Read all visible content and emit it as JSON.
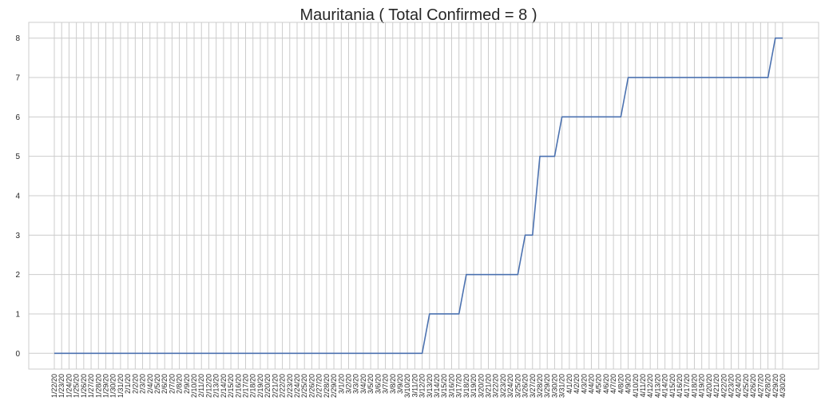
{
  "chart_data": {
    "type": "line",
    "title": "Mauritania ( Total Confirmed = 8 )",
    "xlabel": "",
    "ylabel": "",
    "ylim": [
      -0.4,
      8.4
    ],
    "yticks": [
      0,
      1,
      2,
      3,
      4,
      5,
      6,
      7,
      8
    ],
    "grid": true,
    "x": [
      "1/22/20",
      "1/23/20",
      "1/24/20",
      "1/25/20",
      "1/26/20",
      "1/27/20",
      "1/28/20",
      "1/29/20",
      "1/30/20",
      "1/31/20",
      "2/1/20",
      "2/2/20",
      "2/3/20",
      "2/4/20",
      "2/5/20",
      "2/6/20",
      "2/7/20",
      "2/8/20",
      "2/9/20",
      "2/10/20",
      "2/11/20",
      "2/12/20",
      "2/13/20",
      "2/14/20",
      "2/15/20",
      "2/16/20",
      "2/17/20",
      "2/18/20",
      "2/19/20",
      "2/20/20",
      "2/21/20",
      "2/22/20",
      "2/23/20",
      "2/24/20",
      "2/25/20",
      "2/26/20",
      "2/27/20",
      "2/28/20",
      "2/29/20",
      "3/1/20",
      "3/2/20",
      "3/3/20",
      "3/4/20",
      "3/5/20",
      "3/6/20",
      "3/7/20",
      "3/8/20",
      "3/9/20",
      "3/10/20",
      "3/11/20",
      "3/12/20",
      "3/13/20",
      "3/14/20",
      "3/15/20",
      "3/16/20",
      "3/17/20",
      "3/18/20",
      "3/19/20",
      "3/20/20",
      "3/21/20",
      "3/22/20",
      "3/23/20",
      "3/24/20",
      "3/25/20",
      "3/26/20",
      "3/27/20",
      "3/28/20",
      "3/29/20",
      "3/30/20",
      "3/31/20",
      "4/1/20",
      "4/2/20",
      "4/3/20",
      "4/4/20",
      "4/5/20",
      "4/6/20",
      "4/7/20",
      "4/8/20",
      "4/9/20",
      "4/10/20",
      "4/11/20",
      "4/12/20",
      "4/13/20",
      "4/14/20",
      "4/15/20",
      "4/16/20",
      "4/17/20",
      "4/18/20",
      "4/19/20",
      "4/20/20",
      "4/21/20",
      "4/22/20",
      "4/23/20",
      "4/24/20",
      "4/25/20",
      "4/26/20",
      "4/27/20",
      "4/28/20",
      "4/29/20",
      "4/30/20"
    ],
    "series": [
      {
        "name": "",
        "values": [
          0,
          0,
          0,
          0,
          0,
          0,
          0,
          0,
          0,
          0,
          0,
          0,
          0,
          0,
          0,
          0,
          0,
          0,
          0,
          0,
          0,
          0,
          0,
          0,
          0,
          0,
          0,
          0,
          0,
          0,
          0,
          0,
          0,
          0,
          0,
          0,
          0,
          0,
          0,
          0,
          0,
          0,
          0,
          0,
          0,
          0,
          0,
          0,
          0,
          0,
          0,
          1,
          1,
          1,
          1,
          1,
          2,
          2,
          2,
          2,
          2,
          2,
          2,
          2,
          3,
          3,
          5,
          5,
          5,
          6,
          6,
          6,
          6,
          6,
          6,
          6,
          6,
          6,
          7,
          7,
          7,
          7,
          7,
          7,
          7,
          7,
          7,
          7,
          7,
          7,
          7,
          7,
          7,
          7,
          7,
          7,
          7,
          7,
          8,
          8
        ]
      }
    ],
    "colors": {
      "line": "#4c72b0",
      "grid": "#cccccc",
      "text": "#262626"
    }
  }
}
